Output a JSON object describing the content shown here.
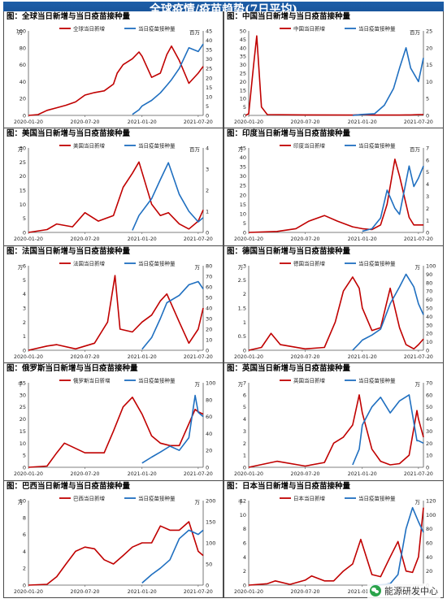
{
  "header": {
    "title": "全球疫情/疫苗趋势(7日平均)"
  },
  "watermark": {
    "text": "能源研发中心"
  },
  "colors": {
    "cases": "#c00000",
    "vaccine": "#1f6fc0"
  },
  "x_ticks": [
    "2020-01-20",
    "2020-07-20",
    "2021-01-20",
    "2021-07-20"
  ],
  "chart_data": [
    {
      "type": "line",
      "title": "图：全球当日新增与当日疫苗接种量",
      "unit_left": "万",
      "unit_right": "百万",
      "legend": [
        "全球当日新增",
        "当日疫苗接种量"
      ],
      "ylim_left": [
        0,
        100
      ],
      "ylim_right": [
        0,
        45
      ],
      "yticks_left": [
        0,
        20,
        40,
        60,
        80,
        100
      ],
      "yticks_right": [
        0,
        5,
        10,
        15,
        20,
        25,
        30,
        35,
        40,
        45
      ],
      "x": [
        "2020-01-20",
        "2020-02-20",
        "2020-03-20",
        "2020-04-20",
        "2020-05-20",
        "2020-06-20",
        "2020-07-20",
        "2020-08-20",
        "2020-09-20",
        "2020-10-20",
        "2020-11-01",
        "2020-11-20",
        "2020-12-20",
        "2021-01-10",
        "2021-01-20",
        "2021-02-20",
        "2021-03-20",
        "2021-04-10",
        "2021-04-25",
        "2021-05-20",
        "2021-06-20",
        "2021-07-20",
        "2021-08-05"
      ],
      "series": [
        {
          "name": "全球当日新增",
          "axis": "left",
          "values": [
            0,
            1,
            6,
            9,
            12,
            16,
            24,
            27,
            29,
            37,
            50,
            60,
            67,
            75,
            70,
            45,
            50,
            72,
            82,
            65,
            38,
            50,
            58
          ]
        },
        {
          "name": "当日疫苗接种量",
          "axis": "right",
          "values": [
            null,
            null,
            null,
            null,
            null,
            null,
            null,
            null,
            null,
            null,
            null,
            null,
            0.5,
            3,
            5,
            8,
            12,
            16,
            19,
            25,
            36,
            34,
            38
          ]
        }
      ]
    },
    {
      "type": "line",
      "title": "图：中国当日新增与当日疫苗接种量",
      "unit_left": "",
      "unit_right": "百万",
      "legend": [
        "中国当日新增",
        "当日疫苗接种量"
      ],
      "ylim_left": [
        0,
        50
      ],
      "ylim_right": [
        0,
        25
      ],
      "yticks_left": [
        0,
        5,
        10,
        15,
        20,
        25,
        30,
        35,
        40,
        45,
        50
      ],
      "yticks_right": [
        0,
        5,
        10,
        15,
        20,
        25
      ],
      "x": [
        "2020-01-10",
        "2020-01-20",
        "2020-02-05",
        "2020-02-15",
        "2020-03-01",
        "2020-03-20",
        "2020-07-20",
        "2020-12-20",
        "2021-01-20",
        "2021-03-01",
        "2021-04-01",
        "2021-05-01",
        "2021-05-20",
        "2021-06-10",
        "2021-06-25",
        "2021-07-20",
        "2021-08-05"
      ],
      "series": [
        {
          "name": "中国当日新增",
          "axis": "left",
          "values": [
            0,
            1,
            30,
            47,
            5,
            0.5,
            0.3,
            0.2,
            0.5,
            0.2,
            0.2,
            0.2,
            0.2,
            0.3,
            0.3,
            0.5,
            0.5
          ]
        },
        {
          "name": "当日疫苗接种量",
          "axis": "right",
          "values": [
            null,
            null,
            null,
            null,
            null,
            null,
            null,
            0,
            0.3,
            0.5,
            3,
            8,
            14,
            20,
            14,
            10,
            17
          ]
        }
      ]
    },
    {
      "type": "line",
      "title": "图：美国当日新增与当日疫苗接种量",
      "unit_left": "万",
      "unit_right": "百万",
      "legend": [
        "美国当日新增",
        "当日疫苗接种量"
      ],
      "ylim_left": [
        0,
        30
      ],
      "ylim_right": [
        0,
        4
      ],
      "yticks_left": [
        0,
        5,
        10,
        15,
        20,
        25,
        30
      ],
      "yticks_right": [
        0,
        1,
        2,
        3,
        4
      ],
      "x": [
        "2020-01-20",
        "2020-03-20",
        "2020-04-20",
        "2020-06-10",
        "2020-07-20",
        "2020-09-01",
        "2020-10-20",
        "2020-11-20",
        "2020-12-20",
        "2021-01-10",
        "2021-02-20",
        "2021-03-20",
        "2021-04-15",
        "2021-05-20",
        "2021-06-20",
        "2021-07-20",
        "2021-08-05"
      ],
      "series": [
        {
          "name": "美国当日新增",
          "axis": "left",
          "values": [
            0,
            1,
            3,
            2,
            7,
            4,
            6,
            16,
            21,
            25,
            10,
            6,
            7,
            3,
            1.2,
            4,
            8
          ]
        },
        {
          "name": "当日疫苗接种量",
          "axis": "right",
          "values": [
            null,
            null,
            null,
            null,
            null,
            null,
            null,
            null,
            0.1,
            0.8,
            1.6,
            2.5,
            3.3,
            1.8,
            1.0,
            0.5,
            0.7
          ]
        }
      ]
    },
    {
      "type": "line",
      "title": "图：印度当日新增与当日疫苗接种量",
      "unit_left": "万",
      "unit_right": "百万",
      "legend": [
        "印度当日新增",
        "当日疫苗接种量"
      ],
      "ylim_left": [
        0,
        45
      ],
      "ylim_right": [
        0,
        7
      ],
      "yticks_left": [
        0,
        5,
        10,
        15,
        20,
        25,
        30,
        35,
        40,
        45
      ],
      "yticks_right": [
        0,
        1,
        2,
        3,
        4,
        5,
        6,
        7
      ],
      "x": [
        "2020-01-20",
        "2020-04-20",
        "2020-06-20",
        "2020-08-01",
        "2020-09-20",
        "2020-11-01",
        "2020-12-20",
        "2021-01-20",
        "2021-02-20",
        "2021-03-20",
        "2021-04-10",
        "2021-05-05",
        "2021-05-20",
        "2021-06-20",
        "2021-07-05",
        "2021-07-20",
        "2021-08-05"
      ],
      "series": [
        {
          "name": "印度当日新增",
          "axis": "left",
          "values": [
            0,
            0.5,
            2,
            6,
            9,
            6,
            3,
            2,
            1.5,
            4,
            15,
            39,
            30,
            8,
            4,
            4,
            4
          ]
        },
        {
          "name": "当日疫苗接种量",
          "axis": "right",
          "values": [
            null,
            null,
            null,
            null,
            null,
            null,
            null,
            0.1,
            0.3,
            1.2,
            3.5,
            2.0,
            1.5,
            5.5,
            3.8,
            4.5,
            5.5
          ]
        }
      ]
    },
    {
      "type": "line",
      "title": "图：法国当日新增与当日疫苗接种量",
      "unit_left": "万",
      "unit_right": "万",
      "legend": [
        "法国当日新增",
        "当日疫苗接种量"
      ],
      "ylim_left": [
        0,
        6
      ],
      "ylim_right": [
        0,
        80
      ],
      "yticks_left": [
        0,
        1,
        2,
        3,
        4,
        5,
        6
      ],
      "yticks_right": [
        0,
        10,
        20,
        30,
        40,
        50,
        60,
        70,
        80
      ],
      "x": [
        "2020-01-20",
        "2020-03-20",
        "2020-04-20",
        "2020-06-20",
        "2020-08-20",
        "2020-10-01",
        "2020-10-25",
        "2020-11-10",
        "2020-12-20",
        "2021-01-20",
        "2021-02-20",
        "2021-03-20",
        "2021-04-10",
        "2021-05-20",
        "2021-06-20",
        "2021-07-20",
        "2021-08-05"
      ],
      "series": [
        {
          "name": "法国当日新增",
          "axis": "left",
          "values": [
            0,
            0.3,
            0.4,
            0.1,
            0.5,
            2,
            5.3,
            1.5,
            1.3,
            2,
            2.5,
            3.5,
            4,
            2,
            0.5,
            1.5,
            3
          ]
        },
        {
          "name": "当日疫苗接种量",
          "axis": "right",
          "values": [
            null,
            null,
            null,
            null,
            null,
            null,
            null,
            null,
            null,
            1,
            12,
            30,
            45,
            52,
            62,
            65,
            58
          ]
        }
      ]
    },
    {
      "type": "line",
      "title": "图：德国当日新增与当日疫苗接种量",
      "unit_left": "万",
      "unit_right": "万",
      "legend": [
        "德国当日新增",
        "当日疫苗接种量"
      ],
      "ylim_left": [
        0,
        3
      ],
      "ylim_right": [
        0,
        100
      ],
      "yticks_left": [
        0,
        0.5,
        1,
        1.5,
        2,
        2.5,
        3
      ],
      "yticks_right": [
        0,
        10,
        20,
        30,
        40,
        50,
        60,
        70,
        80,
        90,
        100
      ],
      "x": [
        "2020-01-20",
        "2020-03-01",
        "2020-04-01",
        "2020-05-01",
        "2020-07-20",
        "2020-09-20",
        "2020-10-25",
        "2020-11-20",
        "2020-12-20",
        "2021-01-10",
        "2021-01-20",
        "2021-02-20",
        "2021-03-20",
        "2021-04-20",
        "2021-05-20",
        "2021-06-10",
        "2021-07-05",
        "2021-07-20",
        "2021-08-05"
      ],
      "series": [
        {
          "name": "德国当日新增",
          "axis": "left",
          "values": [
            0,
            0.1,
            0.6,
            0.2,
            0.05,
            0.1,
            1,
            2.1,
            2.6,
            2.2,
            1.5,
            0.7,
            0.8,
            2.2,
            0.8,
            0.2,
            0.05,
            0.2,
            0.4
          ]
        },
        {
          "name": "当日疫苗接种量",
          "axis": "right",
          "values": [
            null,
            null,
            null,
            null,
            null,
            null,
            null,
            null,
            0,
            8,
            12,
            18,
            25,
            55,
            75,
            90,
            75,
            55,
            42
          ]
        }
      ]
    },
    {
      "type": "line",
      "title": "图：俄罗斯当日新增与当日疫苗接种量",
      "unit_left": "千",
      "unit_right": "万",
      "legend": [
        "俄罗斯当日新增",
        "当日疫苗接种量"
      ],
      "ylim_left": [
        0,
        35
      ],
      "ylim_right": [
        0,
        100
      ],
      "yticks_left": [
        0,
        5,
        10,
        15,
        20,
        25,
        30,
        35
      ],
      "yticks_right": [
        0,
        20,
        40,
        60,
        80,
        100
      ],
      "x": [
        "2020-01-20",
        "2020-03-20",
        "2020-04-20",
        "2020-05-15",
        "2020-07-20",
        "2020-09-20",
        "2020-10-20",
        "2020-11-20",
        "2020-12-20",
        "2021-01-20",
        "2021-02-20",
        "2021-03-20",
        "2021-04-20",
        "2021-05-20",
        "2021-06-20",
        "2021-07-10",
        "2021-07-20",
        "2021-08-05"
      ],
      "series": [
        {
          "name": "俄罗斯当日新增",
          "axis": "left",
          "values": [
            0,
            0.5,
            6,
            10,
            6,
            6,
            15,
            25,
            29,
            22,
            13,
            10,
            9,
            9,
            18,
            24,
            23,
            22
          ]
        },
        {
          "name": "当日疫苗接种量",
          "axis": "right",
          "values": [
            null,
            null,
            null,
            null,
            null,
            null,
            null,
            null,
            null,
            5,
            12,
            18,
            25,
            20,
            35,
            85,
            65,
            60
          ]
        }
      ]
    },
    {
      "type": "line",
      "title": "图：英国当日新增与当日疫苗接种量",
      "unit_left": "万",
      "unit_right": "万",
      "legend": [
        "英国当日新增",
        "当日疫苗接种量"
      ],
      "ylim_left": [
        0,
        7
      ],
      "ylim_right": [
        0,
        70
      ],
      "yticks_left": [
        0,
        1,
        2,
        3,
        4,
        5,
        6,
        7
      ],
      "yticks_right": [
        0,
        10,
        20,
        30,
        40,
        50,
        60,
        70
      ],
      "x": [
        "2020-01-20",
        "2020-04-20",
        "2020-07-20",
        "2020-09-20",
        "2020-10-20",
        "2020-11-20",
        "2020-12-20",
        "2021-01-10",
        "2021-01-20",
        "2021-02-20",
        "2021-03-20",
        "2021-04-20",
        "2021-05-20",
        "2021-06-20",
        "2021-07-15",
        "2021-07-20",
        "2021-08-05"
      ],
      "series": [
        {
          "name": "英国当日新增",
          "axis": "left",
          "values": [
            0,
            0.5,
            0.1,
            0.4,
            2,
            2.5,
            3.5,
            6,
            4.5,
            1.5,
            0.5,
            0.2,
            0.3,
            1,
            4.7,
            4,
            2.5
          ]
        },
        {
          "name": "当日疫苗接种量",
          "axis": "right",
          "values": [
            null,
            null,
            null,
            null,
            null,
            null,
            2,
            15,
            35,
            50,
            58,
            45,
            55,
            60,
            22,
            22,
            20
          ]
        }
      ]
    },
    {
      "type": "line",
      "title": "图：巴西当日新增与当日疫苗接种量",
      "unit_left": "万",
      "unit_right": "万",
      "legend": [
        "巴西当日新增",
        "当日疫苗接种量"
      ],
      "ylim_left": [
        0,
        10
      ],
      "ylim_right": [
        0,
        200
      ],
      "yticks_left": [
        0,
        2,
        4,
        6,
        8,
        10
      ],
      "yticks_right": [
        0,
        50,
        100,
        150,
        200
      ],
      "x": [
        "2020-01-20",
        "2020-03-20",
        "2020-04-20",
        "2020-05-20",
        "2020-06-20",
        "2020-07-20",
        "2020-08-20",
        "2020-09-20",
        "2020-10-20",
        "2020-11-20",
        "2020-12-20",
        "2021-01-20",
        "2021-02-20",
        "2021-03-20",
        "2021-04-20",
        "2021-05-20",
        "2021-06-20",
        "2021-07-20",
        "2021-08-05"
      ],
      "series": [
        {
          "name": "巴西当日新增",
          "axis": "left",
          "values": [
            0,
            0.1,
            1,
            2.5,
            4,
            4.5,
            4.3,
            3,
            2.5,
            3.5,
            4.5,
            5,
            5,
            7,
            6.5,
            6.5,
            7.5,
            4,
            3.5
          ]
        },
        {
          "name": "当日疫苗接种量",
          "axis": "right",
          "values": [
            null,
            null,
            null,
            null,
            null,
            null,
            null,
            null,
            null,
            null,
            null,
            5,
            25,
            40,
            60,
            110,
            130,
            120,
            130
          ]
        }
      ]
    },
    {
      "type": "line",
      "title": "图：日本当日新增与当日疫苗接种量",
      "unit_left": "千",
      "unit_right": "万",
      "legend": [
        "日本当日新增",
        "当日疫苗接种量"
      ],
      "ylim_left": [
        0,
        12
      ],
      "ylim_right": [
        0,
        120
      ],
      "yticks_left": [
        0,
        2,
        4,
        6,
        8,
        10,
        12
      ],
      "yticks_right": [
        0,
        20,
        40,
        60,
        80,
        100,
        120
      ],
      "x": [
        "2020-01-20",
        "2020-03-20",
        "2020-04-15",
        "2020-06-01",
        "2020-07-20",
        "2020-08-10",
        "2020-09-20",
        "2020-10-20",
        "2020-11-20",
        "2020-12-20",
        "2021-01-15",
        "2021-02-20",
        "2021-03-20",
        "2021-04-20",
        "2021-05-15",
        "2021-06-10",
        "2021-07-01",
        "2021-07-20",
        "2021-08-05"
      ],
      "series": [
        {
          "name": "日本当日新增",
          "axis": "left",
          "values": [
            0,
            0.2,
            0.6,
            0.1,
            0.7,
            1.3,
            0.6,
            0.6,
            2,
            3,
            6.5,
            1.5,
            1.2,
            4,
            6.2,
            2,
            1.8,
            4,
            11
          ]
        },
        {
          "name": "当日疫苗接种量",
          "axis": "right",
          "values": [
            null,
            null,
            null,
            null,
            null,
            null,
            null,
            null,
            null,
            null,
            null,
            0.2,
            0.5,
            2,
            15,
            80,
            110,
            90,
            75
          ]
        }
      ]
    }
  ]
}
